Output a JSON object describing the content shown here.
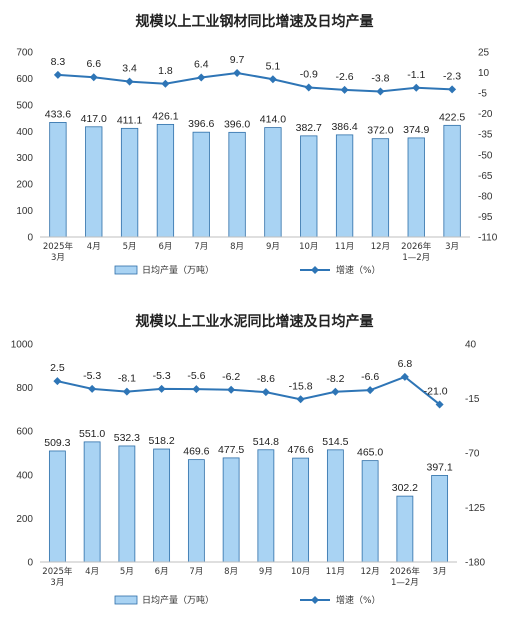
{
  "chart_data": [
    {
      "type": "bar",
      "title": "规模以上工业钢材同比增速及日均产量",
      "categories": [
        "2025年\n3月",
        "4月",
        "5月",
        "6月",
        "7月",
        "8月",
        "9月",
        "10月",
        "11月",
        "12月",
        "2026年\n1—2月",
        "3月"
      ],
      "series": [
        {
          "name": "日均产量（万吨）",
          "type": "bar",
          "axis": "left",
          "values": [
            433.6,
            417.0,
            411.1,
            426.1,
            396.6,
            396.0,
            414.0,
            382.7,
            386.4,
            372.0,
            374.9,
            422.5
          ]
        },
        {
          "name": "增速（%）",
          "type": "line",
          "axis": "right",
          "values": [
            8.3,
            6.6,
            3.4,
            1.8,
            6.4,
            9.7,
            5.1,
            -0.9,
            -2.6,
            -3.8,
            -1.1,
            -2.3
          ]
        }
      ],
      "left_axis": {
        "min": 0,
        "max": 700,
        "ticks": [
          0,
          100,
          200,
          300,
          400,
          500,
          600,
          700
        ]
      },
      "right_axis": {
        "min": -110,
        "max": 25,
        "ticks": [
          25,
          10,
          -5,
          -20,
          -35,
          -50,
          -65,
          -80,
          -95,
          -110
        ]
      },
      "colors": {
        "bar": "#a9d3f3",
        "bar_stroke": "#2e6fa8",
        "line": "#2e75b6"
      }
    },
    {
      "type": "bar",
      "title": "规模以上工业水泥同比增速及日均产量",
      "categories": [
        "2025年\n3月",
        "4月",
        "5月",
        "6月",
        "7月",
        "8月",
        "9月",
        "10月",
        "11月",
        "12月",
        "2026年\n1—2月",
        "3月"
      ],
      "series": [
        {
          "name": "日均产量（万吨）",
          "type": "bar",
          "axis": "left",
          "values": [
            509.3,
            551.0,
            532.3,
            518.2,
            469.6,
            477.5,
            514.8,
            476.6,
            514.5,
            465.0,
            302.2,
            397.1
          ]
        },
        {
          "name": "增速（%）",
          "type": "line",
          "axis": "right",
          "values": [
            2.5,
            -5.3,
            -8.1,
            -5.3,
            -5.6,
            -6.2,
            -8.6,
            -15.8,
            -8.2,
            -6.6,
            6.8,
            -21.0
          ]
        }
      ],
      "left_axis": {
        "min": 0,
        "max": 1000,
        "ticks": [
          0,
          200,
          400,
          600,
          800,
          1000
        ]
      },
      "right_axis": {
        "min": -180,
        "max": 40,
        "ticks": [
          40,
          -15,
          -70,
          -125,
          -180
        ]
      },
      "colors": {
        "bar": "#a9d3f3",
        "bar_stroke": "#2e6fa8",
        "line": "#2e75b6"
      }
    }
  ]
}
